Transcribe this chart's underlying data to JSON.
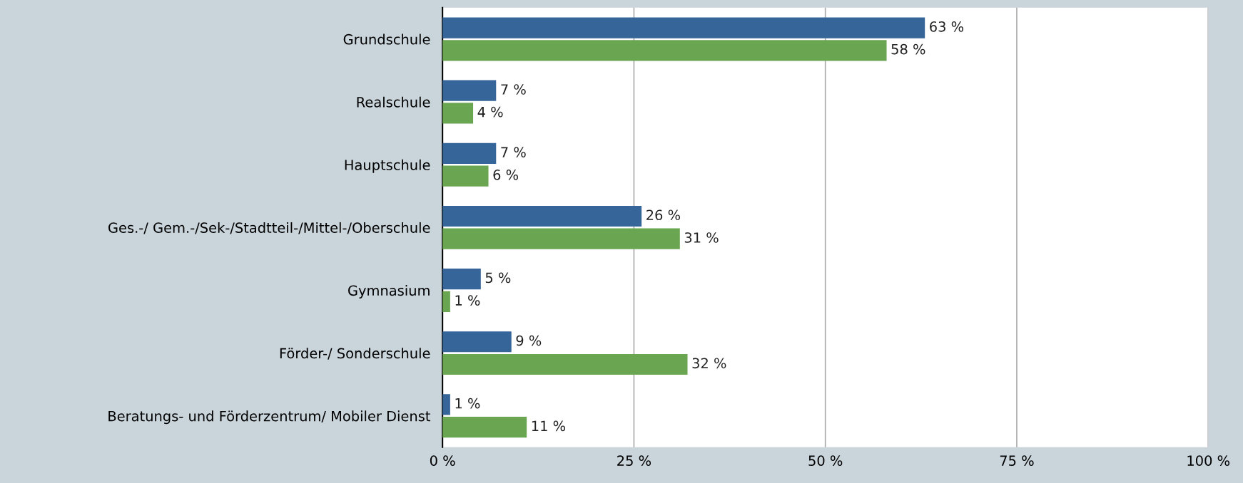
{
  "chart_data": {
    "type": "bar",
    "orientation": "horizontal",
    "categories": [
      "Grundschule",
      "Realschule",
      "Hauptschule",
      "Ges.-/ Gem.-/Sek-/Stadtteil-/Mittel-/Oberschule",
      "Gymnasium",
      "Förder-/ Sonderschule",
      "Beratungs- und Förderzentrum/ Mobiler Dienst"
    ],
    "series": [
      {
        "color": "#36659a",
        "values": [
          63,
          7,
          7,
          26,
          5,
          9,
          1
        ],
        "value_labels": [
          "63 %",
          "7 %",
          "7 %",
          "26 %",
          "5 %",
          "9 %",
          "1 %"
        ]
      },
      {
        "color": "#6aa551",
        "values": [
          58,
          4,
          6,
          31,
          1,
          32,
          11
        ],
        "value_labels": [
          "58 %",
          "4 %",
          "6 %",
          "31 %",
          "1 %",
          "32 %",
          "11 %"
        ]
      }
    ],
    "xlim": [
      0,
      100
    ],
    "xticks": [
      {
        "value": 0,
        "label": "0 %"
      },
      {
        "value": 25,
        "label": "25 %"
      },
      {
        "value": 50,
        "label": "50 %"
      },
      {
        "value": 75,
        "label": "75 %"
      },
      {
        "value": 100,
        "label": "100 %"
      }
    ],
    "grid": "x",
    "legend": false
  }
}
